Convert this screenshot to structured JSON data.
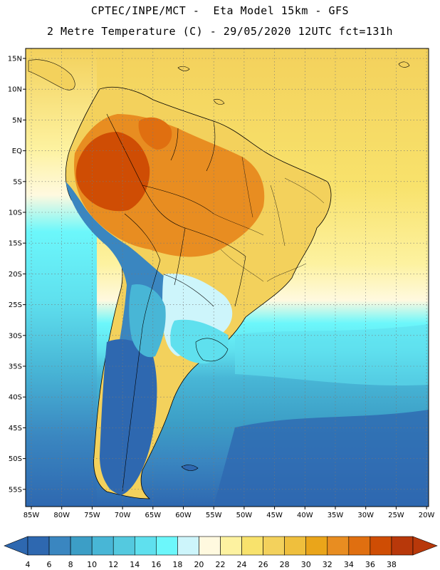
{
  "title": {
    "line1": "CPTEC/INPE/MCT -  Eta Model 15km - GFS",
    "line2": "2 Metre Temperature (C) - 29/05/2020 12UTC fct=131h"
  },
  "map": {
    "lat_labels": [
      "15N",
      "10N",
      "5N",
      "EQ",
      "5S",
      "10S",
      "15S",
      "20S",
      "25S",
      "30S",
      "35S",
      "40S",
      "45S",
      "50S",
      "55S"
    ],
    "lon_labels": [
      "85W",
      "80W",
      "75W",
      "70W",
      "65W",
      "60W",
      "55W",
      "50W",
      "45W",
      "40W",
      "35W",
      "30W",
      "25W",
      "20W"
    ]
  },
  "colorbar": {
    "ticks": [
      "4",
      "6",
      "8",
      "10",
      "12",
      "14",
      "16",
      "18",
      "20",
      "22",
      "24",
      "26",
      "28",
      "30",
      "32",
      "34",
      "36",
      "38"
    ],
    "colors": [
      "#2e68b0",
      "#3a86c0",
      "#3c9ec6",
      "#48b6d6",
      "#54c9df",
      "#5fe0ee",
      "#6cf7fb",
      "#cdf5fb",
      "#fff9df",
      "#fdf2a0",
      "#f8e26c",
      "#f3d15c",
      "#efbf3d",
      "#eaa51a",
      "#e88d21",
      "#e06f10",
      "#cf4d04",
      "#b8380a"
    ]
  }
}
